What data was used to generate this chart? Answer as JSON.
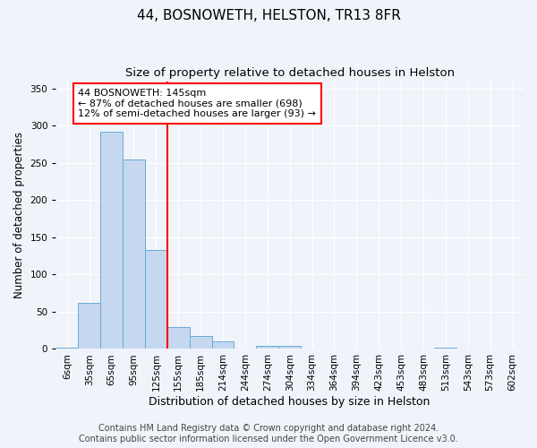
{
  "title": "44, BOSNOWETH, HELSTON, TR13 8FR",
  "subtitle": "Size of property relative to detached houses in Helston",
  "xlabel": "Distribution of detached houses by size in Helston",
  "ylabel": "Number of detached properties",
  "categories": [
    "6sqm",
    "35sqm",
    "65sqm",
    "95sqm",
    "125sqm",
    "155sqm",
    "185sqm",
    "214sqm",
    "244sqm",
    "274sqm",
    "304sqm",
    "334sqm",
    "364sqm",
    "394sqm",
    "423sqm",
    "453sqm",
    "483sqm",
    "513sqm",
    "543sqm",
    "573sqm",
    "602sqm"
  ],
  "bar_heights": [
    2,
    62,
    292,
    255,
    133,
    30,
    17,
    10,
    0,
    4,
    4,
    0,
    0,
    0,
    0,
    0,
    0,
    2,
    0,
    0,
    0
  ],
  "bar_color": "#c5d8f0",
  "bar_edge_color": "#6aaad4",
  "vline_x_index": 5,
  "vline_color": "red",
  "annotation_text": "44 BOSNOWETH: 145sqm\n← 87% of detached houses are smaller (698)\n12% of semi-detached houses are larger (93) →",
  "annotation_box_color": "white",
  "annotation_box_edge_color": "red",
  "footer_line1": "Contains HM Land Registry data © Crown copyright and database right 2024.",
  "footer_line2": "Contains public sector information licensed under the Open Government Licence v3.0.",
  "ylim": [
    0,
    360
  ],
  "yticks": [
    0,
    50,
    100,
    150,
    200,
    250,
    300,
    350
  ],
  "background_color": "#f0f4fa",
  "grid_color": "white",
  "title_fontsize": 11,
  "subtitle_fontsize": 9.5,
  "ylabel_fontsize": 8.5,
  "xlabel_fontsize": 9,
  "tick_fontsize": 7.5,
  "annotation_fontsize": 8,
  "footer_fontsize": 7
}
